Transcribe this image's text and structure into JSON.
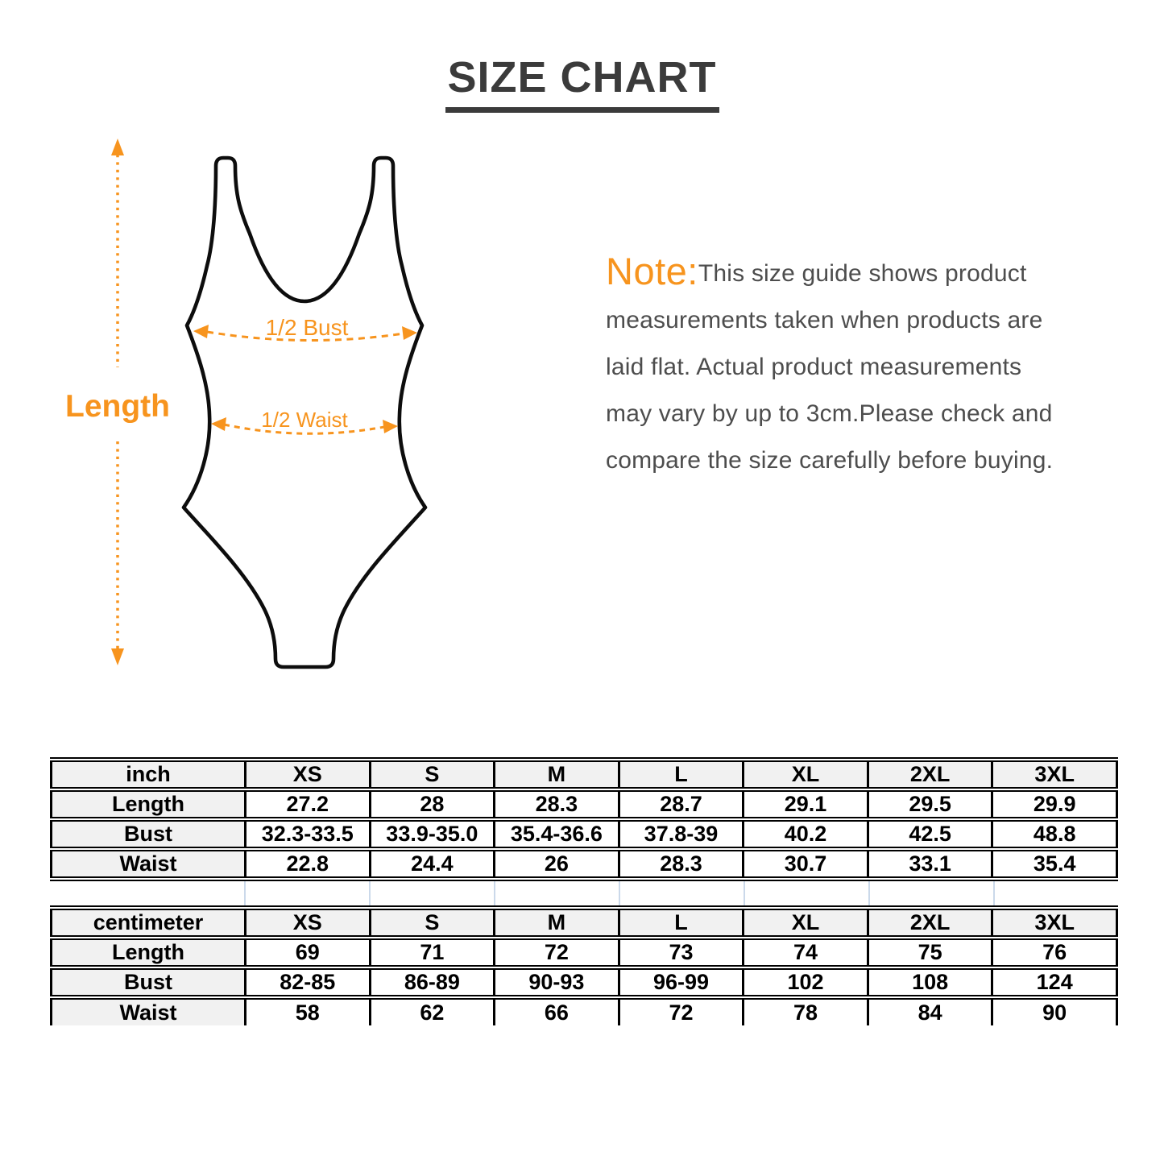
{
  "title": "SIZE CHART",
  "diagram": {
    "length_label": "Length",
    "bust_label": "1/2 Bust",
    "waist_label": "1/2 Waist"
  },
  "note": {
    "prefix": "Note:",
    "lines": [
      "This size guide shows product",
      "measurements taken when products are",
      "laid flat. Actual product measurements",
      "may vary by up to 3cm.Please check and",
      "compare the size carefully before buying."
    ]
  },
  "size_tables": [
    {
      "unit": "inch",
      "sizes": [
        "XS",
        "S",
        "M",
        "L",
        "XL",
        "2XL",
        "3XL"
      ],
      "rows": [
        {
          "label": "Length",
          "values": [
            "27.2",
            "28",
            "28.3",
            "28.7",
            "29.1",
            "29.5",
            "29.9"
          ]
        },
        {
          "label": "Bust",
          "values": [
            "32.3-33.5",
            "33.9-35.0",
            "35.4-36.6",
            "37.8-39",
            "40.2",
            "42.5",
            "48.8"
          ]
        },
        {
          "label": "Waist",
          "values": [
            "22.8",
            "24.4",
            "26",
            "28.3",
            "30.7",
            "33.1",
            "35.4"
          ]
        }
      ]
    },
    {
      "unit": "centimeter",
      "sizes": [
        "XS",
        "S",
        "M",
        "L",
        "XL",
        "2XL",
        "3XL"
      ],
      "rows": [
        {
          "label": "Length",
          "values": [
            "69",
            "71",
            "72",
            "73",
            "74",
            "75",
            "76"
          ]
        },
        {
          "label": "Bust",
          "values": [
            "82-85",
            "86-89",
            "90-93",
            "96-99",
            "102",
            "108",
            "124"
          ]
        },
        {
          "label": "Waist",
          "values": [
            "58",
            "62",
            "66",
            "72",
            "78",
            "84",
            "90"
          ]
        }
      ]
    }
  ],
  "colors": {
    "accent_orange": "#F7941E",
    "title_gray": "#3B3B3B",
    "note_text_gray": "#4D4D4D",
    "suit_outline": "#0D0D0D",
    "table_border": "#000000",
    "table_header_bg": "#F1F1F1",
    "spacer_grid_line": "#CBD9EA"
  }
}
